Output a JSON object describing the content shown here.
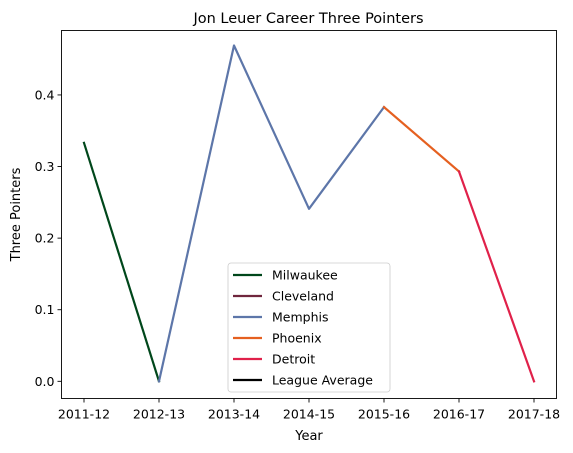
{
  "chart_data": {
    "type": "line",
    "title": "Jon Leuer Career Three Pointers",
    "xlabel": "Year",
    "ylabel": "Three Pointers",
    "categories": [
      "2011-12",
      "2012-13",
      "2013-14",
      "2014-15",
      "2015-16",
      "2016-17",
      "2017-18"
    ],
    "yticks": [
      "0.0",
      "0.1",
      "0.2",
      "0.3",
      "0.4"
    ],
    "ylim": [
      -0.024,
      0.49
    ],
    "grid": false,
    "legend_position": "bottom-center",
    "series": [
      {
        "name": "Milwaukee",
        "color": "#00471B",
        "points": [
          [
            "2011-12",
            0.333
          ],
          [
            "2012-13",
            0.0
          ]
        ]
      },
      {
        "name": "Cleveland",
        "color": "#6F263D",
        "points": []
      },
      {
        "name": "Memphis",
        "color": "#5D76A9",
        "points": [
          [
            "2012-13",
            0.0
          ],
          [
            "2013-14",
            0.469
          ],
          [
            "2014-15",
            0.241
          ],
          [
            "2015-16",
            0.383
          ]
        ]
      },
      {
        "name": "Phoenix",
        "color": "#E56020",
        "points": [
          [
            "2015-16",
            0.383
          ],
          [
            "2016-17",
            0.293
          ]
        ]
      },
      {
        "name": "Detroit",
        "color": "#E0214A",
        "points": [
          [
            "2016-17",
            0.293
          ],
          [
            "2017-18",
            0.0
          ]
        ]
      },
      {
        "name": "League Average",
        "color": "#000000",
        "points": []
      }
    ]
  }
}
